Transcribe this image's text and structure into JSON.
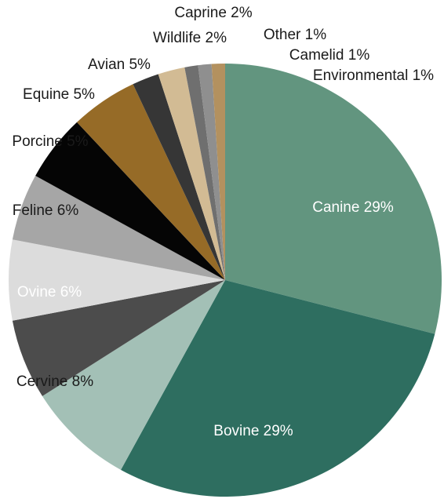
{
  "chart_data": {
    "type": "pie",
    "title": "",
    "start": "12 o'clock",
    "direction": "clockwise",
    "slices": [
      {
        "name": "Canine",
        "value": 29,
        "label": "Canine 29%",
        "color": "#62957f",
        "label_color": "#ffffff"
      },
      {
        "name": "Bovine",
        "value": 29,
        "label": "Bovine 29%",
        "color": "#2e6e60",
        "label_color": "#ffffff"
      },
      {
        "name": "Cervine",
        "value": 8,
        "label": "Cervine 8%",
        "color": "#a3c0b6",
        "label_color": "#1a1a1a"
      },
      {
        "name": "Ovine",
        "value": 6,
        "label": "Ovine 6%",
        "color": "#4c4c4c",
        "label_color": "#ffffff"
      },
      {
        "name": "Feline",
        "value": 6,
        "label": "Feline 6%",
        "color": "#dcdcdc",
        "label_color": "#1a1a1a"
      },
      {
        "name": "Porcine",
        "value": 5,
        "label": "Porcine 5%",
        "color": "#a6a6a6",
        "label_color": "#1a1a1a"
      },
      {
        "name": "Equine",
        "value": 5,
        "label": "Equine 5%",
        "color": "#050505",
        "label_color": "#1a1a1a"
      },
      {
        "name": "Avian",
        "value": 5,
        "label": "Avian 5%",
        "color": "#966b27",
        "label_color": "#1a1a1a"
      },
      {
        "name": "Wildlife",
        "value": 2,
        "label": "Wildlife 2%",
        "color": "#363636",
        "label_color": "#1a1a1a"
      },
      {
        "name": "Caprine",
        "value": 2,
        "label": "Caprine 2%",
        "color": "#d2bb94",
        "label_color": "#1a1a1a"
      },
      {
        "name": "Other",
        "value": 1,
        "label": "Other 1%",
        "color": "#6f6f6f",
        "label_color": "#1a1a1a"
      },
      {
        "name": "Camelid",
        "value": 1,
        "label": "Camelid 1%",
        "color": "#8f8f8f",
        "label_color": "#1a1a1a"
      },
      {
        "name": "Environmental",
        "value": 1,
        "label": "Environmental 1%",
        "color": "#b3915f",
        "label_color": "#1a1a1a"
      }
    ]
  }
}
